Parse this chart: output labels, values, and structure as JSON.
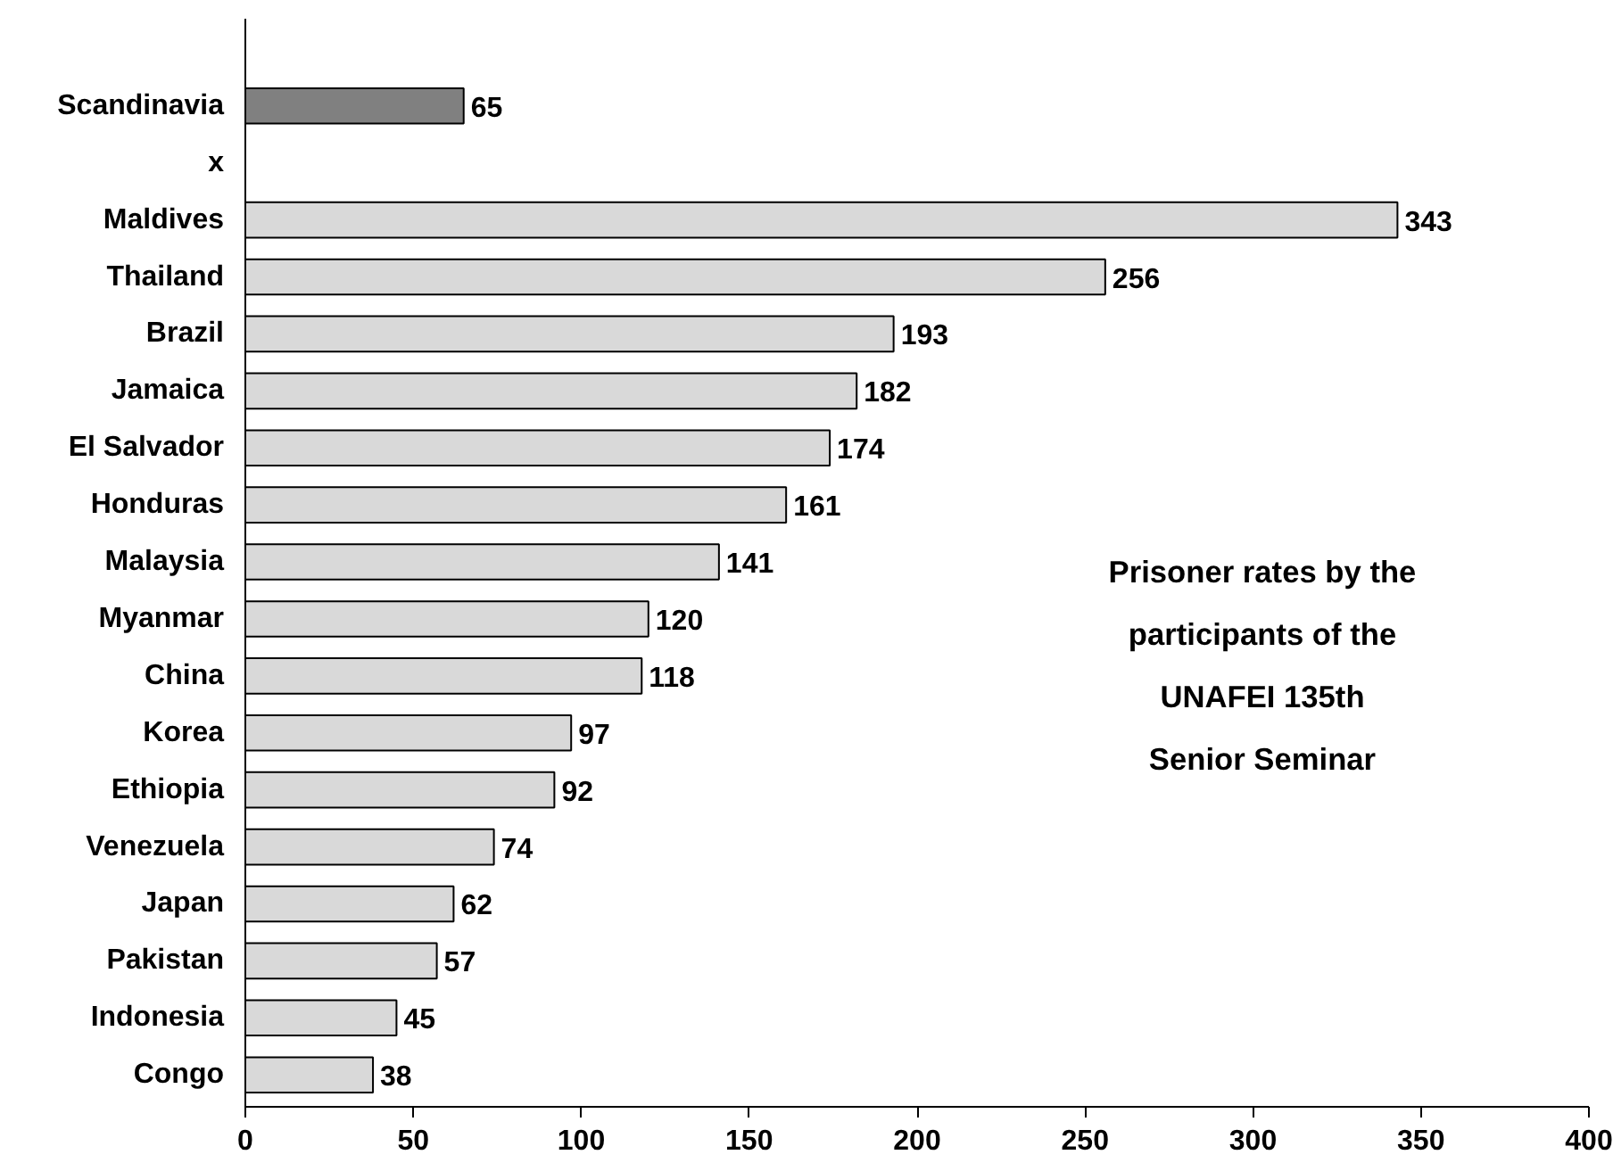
{
  "chart_data": {
    "type": "bar",
    "orientation": "horizontal",
    "categories": [
      "Scandinavia",
      "x",
      "Maldives",
      "Thailand",
      "Brazil",
      "Jamaica",
      "El Salvador",
      "Honduras",
      "Malaysia",
      "Myanmar",
      "China",
      "Korea",
      "Ethiopia",
      "Venezuela",
      "Japan",
      "Pakistan",
      "Indonesia",
      "Congo"
    ],
    "values": [
      65,
      null,
      343,
      256,
      193,
      182,
      174,
      161,
      141,
      120,
      118,
      97,
      92,
      74,
      62,
      57,
      45,
      38
    ],
    "colors": [
      "#808080",
      null,
      "#d9d9d9",
      "#d9d9d9",
      "#d9d9d9",
      "#d9d9d9",
      "#d9d9d9",
      "#d9d9d9",
      "#d9d9d9",
      "#d9d9d9",
      "#d9d9d9",
      "#d9d9d9",
      "#d9d9d9",
      "#d9d9d9",
      "#d9d9d9",
      "#d9d9d9",
      "#d9d9d9",
      "#d9d9d9"
    ],
    "xlim": [
      0,
      400
    ],
    "xticks": [
      0,
      50,
      100,
      150,
      200,
      250,
      300,
      350,
      400
    ],
    "data_labels": true,
    "grid": false,
    "annotations": [
      "Prisoner rates by the\nparticipants of the\nUNAFEI 135th\nSenior Seminar"
    ]
  }
}
